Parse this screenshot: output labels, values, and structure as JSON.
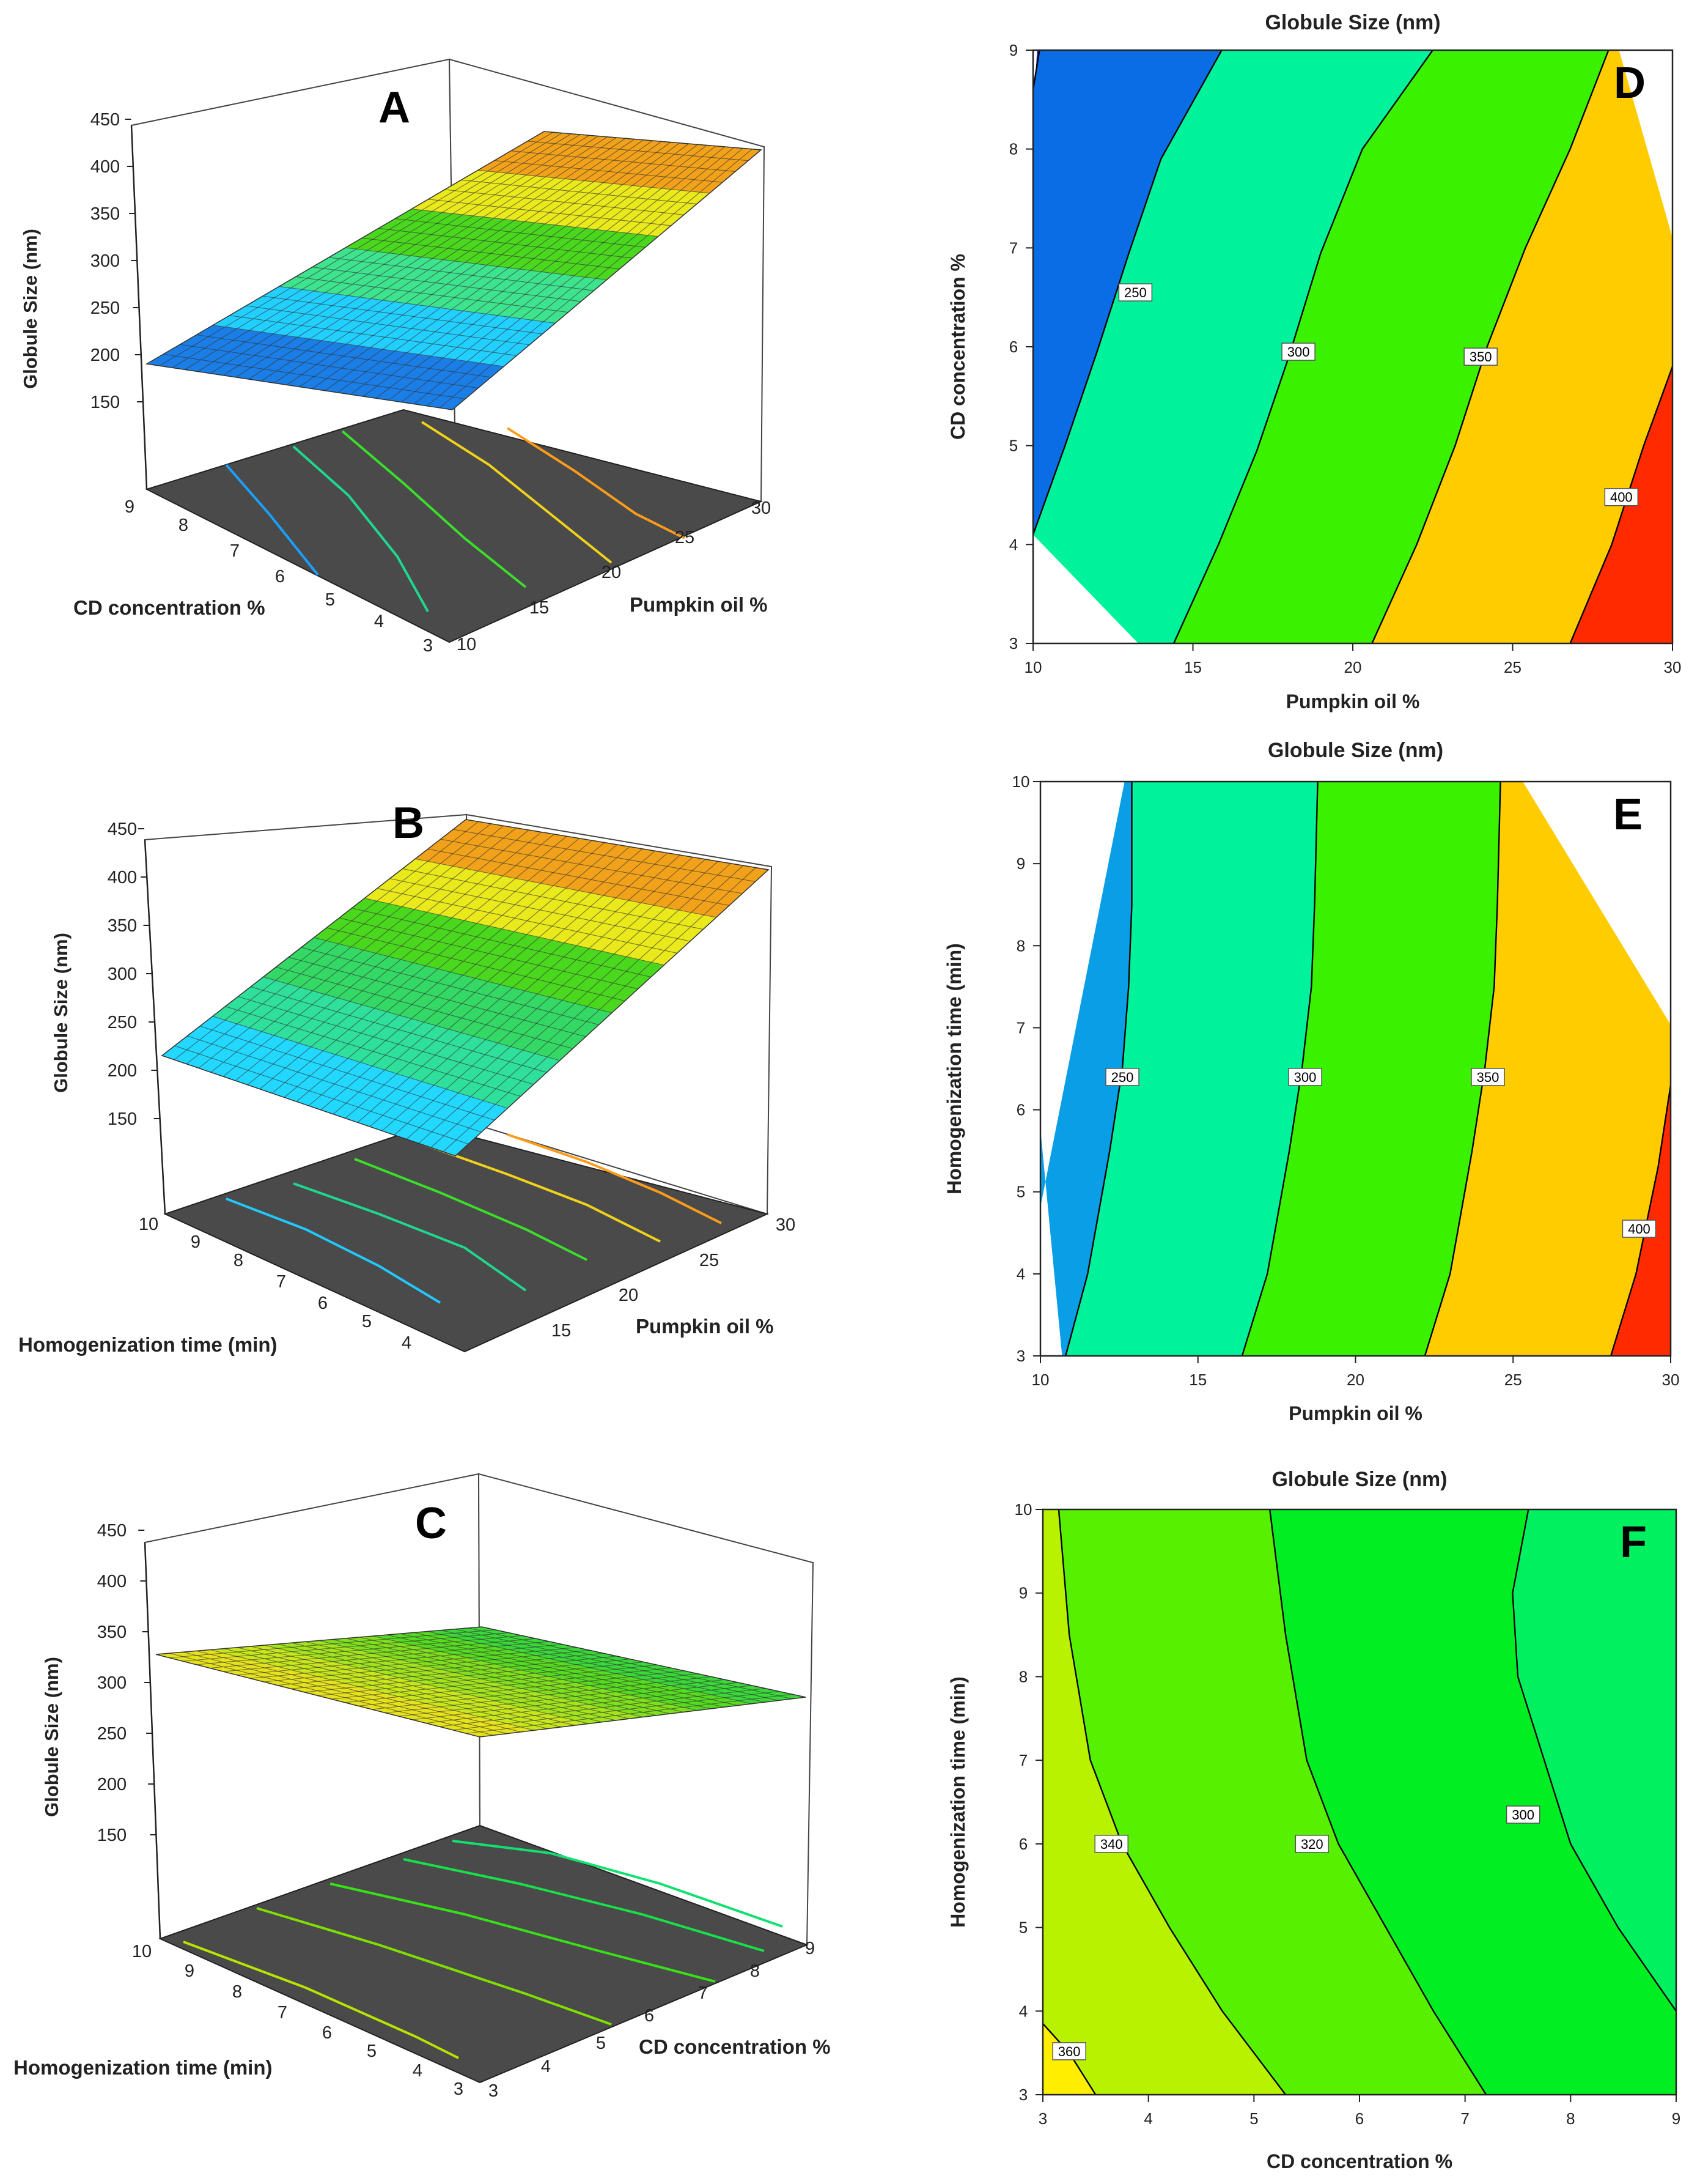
{
  "figure": {
    "panels_3d": [
      {
        "letter": "A",
        "zlabel": "Globule Size (nm)",
        "zticks": [
          "450",
          "400",
          "350",
          "300",
          "250",
          "200",
          "150"
        ],
        "xlabel": "CD concentration %",
        "xticks": [
          "9",
          "8",
          "7",
          "6",
          "5",
          "4",
          "3"
        ],
        "ylabel": "Pumpkin oil %",
        "yticks": [
          "10",
          "15",
          "20",
          "25",
          "30"
        ]
      },
      {
        "letter": "B",
        "zlabel": "Globule Size (nm)",
        "zticks": [
          "450",
          "400",
          "350",
          "300",
          "250",
          "200",
          "150"
        ],
        "xlabel": "Homogenization time (min)",
        "xticks": [
          "10",
          "9",
          "8",
          "7",
          "6",
          "5",
          "4"
        ],
        "ylabel": "Pumpkin oil %",
        "yticks": [
          "15",
          "20",
          "25",
          "30"
        ]
      },
      {
        "letter": "C",
        "zlabel": "Globule Size (nm)",
        "zticks": [
          "450",
          "400",
          "350",
          "300",
          "250",
          "200",
          "150"
        ],
        "xlabel": "Homogenization time (min)",
        "xticks": [
          "10",
          "9",
          "8",
          "7",
          "6",
          "5",
          "4",
          "3"
        ],
        "ylabel": "CD concentration %",
        "yticks": [
          "3",
          "4",
          "5",
          "6",
          "7",
          "8",
          "9"
        ]
      }
    ]
  },
  "chart_data": [
    {
      "type": "contour",
      "panel": "D",
      "title": "Globule Size (nm)",
      "xlabel": "Pumpkin oil %",
      "ylabel": "CD concentration %",
      "xlim": [
        10,
        30
      ],
      "ylim": [
        3,
        9
      ],
      "xticks": [
        10,
        15,
        20,
        25,
        30
      ],
      "yticks": [
        3,
        4,
        5,
        6,
        7,
        8,
        9
      ],
      "region_colors": [
        "#0a2bd6",
        "#0b6de6",
        "#00f29a",
        "#3af200",
        "#ffcc00",
        "#ff2a00"
      ],
      "contours": [
        {
          "level": "200",
          "points": [
            [
              10,
              8.6
            ],
            [
              10.2,
              9
            ]
          ],
          "label": null
        },
        {
          "level": "250",
          "points": [
            [
              10,
              4.1
            ],
            [
              11.0,
              5.0
            ],
            [
              12.0,
              5.95
            ],
            [
              13.0,
              6.95
            ],
            [
              14.0,
              7.9
            ],
            [
              15.9,
              9.0
            ]
          ],
          "label": {
            "text": "250",
            "x": 13.2,
            "y": 6.55
          }
        },
        {
          "level": "300",
          "points": [
            [
              14.4,
              3
            ],
            [
              15.8,
              4.0
            ],
            [
              17.0,
              4.95
            ],
            [
              18.0,
              5.9
            ],
            [
              19.0,
              6.95
            ],
            [
              20.3,
              8.0
            ],
            [
              22.5,
              9.0
            ]
          ],
          "label": {
            "text": "300",
            "x": 18.3,
            "y": 5.95
          }
        },
        {
          "level": "350",
          "points": [
            [
              20.6,
              3
            ],
            [
              22.0,
              4.0
            ],
            [
              23.2,
              5.0
            ],
            [
              24.2,
              6.0
            ],
            [
              25.4,
              7.0
            ],
            [
              26.8,
              8.0
            ],
            [
              28.0,
              9.0
            ]
          ],
          "label": {
            "text": "350",
            "x": 24.0,
            "y": 5.9
          }
        },
        {
          "level": "400",
          "points": [
            [
              26.8,
              3
            ],
            [
              28.1,
              4.0
            ],
            [
              29.1,
              5.0
            ],
            [
              30.0,
              5.8
            ]
          ],
          "label": {
            "text": "400",
            "x": 28.4,
            "y": 4.48
          }
        }
      ]
    },
    {
      "type": "contour",
      "panel": "E",
      "title": "Globule Size (nm)",
      "xlabel": "Pumpkin oil %",
      "ylabel": "Homogenization time (min)",
      "xlim": [
        10,
        30
      ],
      "ylim": [
        3,
        10
      ],
      "xticks": [
        10,
        15,
        20,
        25,
        30
      ],
      "yticks": [
        3,
        4,
        5,
        6,
        7,
        8,
        9,
        10
      ],
      "region_colors": [
        "#0a9ee6",
        "#00f29a",
        "#3af200",
        "#ffcc00",
        "#ff2a00"
      ],
      "contours": [
        {
          "level": "250",
          "points": [
            [
              10.8,
              3
            ],
            [
              11.5,
              4.0
            ],
            [
              12.2,
              5.5
            ],
            [
              12.6,
              6.5
            ],
            [
              12.8,
              7.5
            ],
            [
              12.9,
              8.5
            ],
            [
              12.9,
              10
            ]
          ],
          "label": {
            "text": "250",
            "x": 12.6,
            "y": 6.4
          }
        },
        {
          "level": "300",
          "points": [
            [
              16.4,
              3
            ],
            [
              17.2,
              4.0
            ],
            [
              17.9,
              5.5
            ],
            [
              18.3,
              6.5
            ],
            [
              18.6,
              7.5
            ],
            [
              18.7,
              8.5
            ],
            [
              18.8,
              10
            ]
          ],
          "label": {
            "text": "300",
            "x": 18.4,
            "y": 6.4
          }
        },
        {
          "level": "350",
          "points": [
            [
              22.2,
              3
            ],
            [
              23.0,
              4.0
            ],
            [
              23.7,
              5.5
            ],
            [
              24.1,
              6.5
            ],
            [
              24.4,
              7.5
            ],
            [
              24.5,
              8.5
            ],
            [
              24.6,
              10
            ]
          ],
          "label": {
            "text": "350",
            "x": 24.2,
            "y": 6.4
          }
        },
        {
          "level": "400",
          "points": [
            [
              28.1,
              3
            ],
            [
              28.9,
              4.0
            ],
            [
              29.6,
              5.3
            ],
            [
              30.0,
              6.3
            ]
          ],
          "label": {
            "text": "400",
            "x": 29.0,
            "y": 4.55
          }
        }
      ]
    },
    {
      "type": "contour",
      "panel": "F",
      "title": "Globule Size (nm)",
      "xlabel": "CD concentration %",
      "ylabel": "Homogenization time (min)",
      "xlim": [
        3,
        9
      ],
      "ylim": [
        3,
        10
      ],
      "xticks": [
        3,
        4,
        5,
        6,
        7,
        8,
        9
      ],
      "yticks": [
        3,
        4,
        5,
        6,
        7,
        8,
        9,
        10
      ],
      "region_colors": [
        "#ffee00",
        "#b8f200",
        "#56f000",
        "#00ee22",
        "#00f060"
      ],
      "contours": [
        {
          "level": "360",
          "points": [
            [
              3.0,
              3.85
            ],
            [
              3.25,
              3.5
            ],
            [
              3.5,
              3.0
            ]
          ],
          "label": {
            "text": "360",
            "x": 3.25,
            "y": 3.52
          }
        },
        {
          "level": "340",
          "points": [
            [
              3.15,
              10
            ],
            [
              3.25,
              8.5
            ],
            [
              3.45,
              7.0
            ],
            [
              3.75,
              6.0
            ],
            [
              4.2,
              5.0
            ],
            [
              4.7,
              4.0
            ],
            [
              5.3,
              3.0
            ]
          ],
          "label": {
            "text": "340",
            "x": 3.65,
            "y": 6.0
          }
        },
        {
          "level": "320",
          "points": [
            [
              5.15,
              10
            ],
            [
              5.3,
              8.5
            ],
            [
              5.5,
              7.0
            ],
            [
              5.8,
              6.0
            ],
            [
              6.25,
              5.0
            ],
            [
              6.7,
              4.0
            ],
            [
              7.2,
              3.0
            ]
          ],
          "label": {
            "text": "320",
            "x": 5.55,
            "y": 6.0
          }
        },
        {
          "level": "300",
          "points": [
            [
              7.6,
              10
            ],
            [
              7.45,
              9.0
            ],
            [
              7.5,
              8.0
            ],
            [
              7.75,
              7.0
            ],
            [
              8.0,
              6.0
            ],
            [
              8.45,
              5.0
            ],
            [
              9.0,
              4.0
            ]
          ],
          "label": {
            "text": "300",
            "x": 7.55,
            "y": 6.35
          }
        }
      ]
    }
  ]
}
